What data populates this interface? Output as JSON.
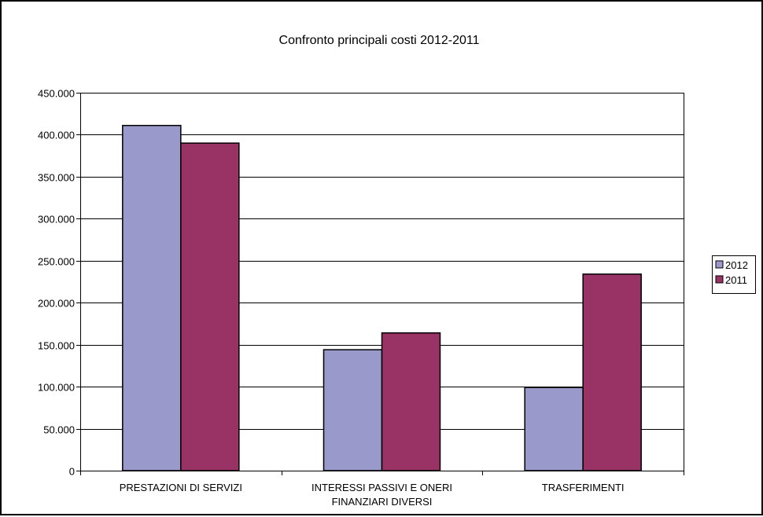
{
  "chart_data": {
    "type": "bar",
    "title": "Confronto principali costi 2012-2011",
    "xlabel": "",
    "ylabel": "",
    "categories": [
      [
        "PRESTAZIONI DI SERVIZI"
      ],
      [
        "INTERESSI PASSIVI E ONERI",
        "FINANZIARI DIVERSI"
      ],
      [
        "TRASFERIMENTI"
      ]
    ],
    "series": [
      {
        "name": "2012",
        "values": [
          411000,
          144000,
          99000
        ],
        "color": "#9999CC"
      },
      {
        "name": "2011",
        "values": [
          390000,
          164000,
          234000
        ],
        "color": "#993366"
      }
    ],
    "ylim": [
      0,
      450000
    ],
    "y_ticks": [
      {
        "value": 0,
        "label": "0"
      },
      {
        "value": 50000,
        "label": "50.000"
      },
      {
        "value": 100000,
        "label": "100.000"
      },
      {
        "value": 150000,
        "label": "150.000"
      },
      {
        "value": 200000,
        "label": "200.000"
      },
      {
        "value": 250000,
        "label": "250.000"
      },
      {
        "value": 300000,
        "label": "300.000"
      },
      {
        "value": 350000,
        "label": "350.000"
      },
      {
        "value": 400000,
        "label": "400.000"
      },
      {
        "value": 450000,
        "label": "450.000"
      }
    ],
    "grid": true,
    "legend_position": "right"
  }
}
